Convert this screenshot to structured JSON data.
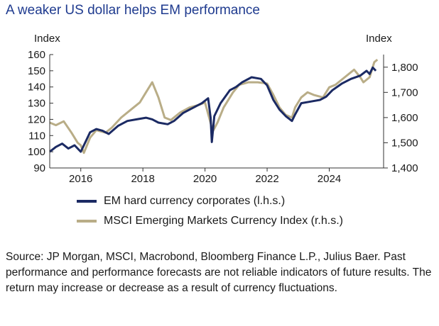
{
  "title": "A weaker US dollar helps EM performance",
  "source": "Source: JP Morgan, MSCI, Macrobond, Bloomberg Finance L.P., Julius Baer. Past performance and performance forecasts are not reliable indicators of future results. The return may increase or decrease as a result of currency fluctuations.",
  "colors": {
    "em_corporates": "#1b2a63",
    "msci_currency": "#b9ad87"
  },
  "chart_data": {
    "type": "line",
    "title": "A weaker US dollar helps EM performance",
    "left_axis": {
      "label": "Index",
      "range": [
        90,
        160
      ],
      "ticks": [
        90,
        100,
        110,
        120,
        130,
        140,
        150,
        160
      ]
    },
    "right_axis": {
      "label": "Index",
      "range": [
        1400,
        1850
      ],
      "ticks": [
        1400,
        1500,
        1600,
        1700,
        1800
      ],
      "tick_labels": [
        "1,400",
        "1,500",
        "1,600",
        "1,700",
        "1,800"
      ]
    },
    "x_axis": {
      "range": [
        2015.0,
        2025.75
      ],
      "ticks": [
        2016,
        2018,
        2020,
        2022,
        2024
      ]
    },
    "legend_position": "bottom",
    "series": [
      {
        "name": "EM hard currency corporates (l.h.s.)",
        "axis": "left",
        "x": [
          2015.0,
          2015.2,
          2015.4,
          2015.6,
          2015.8,
          2016.0,
          2016.1,
          2016.3,
          2016.5,
          2016.7,
          2016.9,
          2017.2,
          2017.5,
          2017.8,
          2018.1,
          2018.3,
          2018.5,
          2018.8,
          2019.0,
          2019.3,
          2019.6,
          2019.9,
          2020.1,
          2020.18,
          2020.22,
          2020.3,
          2020.5,
          2020.8,
          2021.0,
          2021.2,
          2021.5,
          2021.8,
          2022.0,
          2022.2,
          2022.4,
          2022.6,
          2022.8,
          2022.9,
          2023.1,
          2023.4,
          2023.7,
          2023.9,
          2024.1,
          2024.4,
          2024.7,
          2025.0,
          2025.2,
          2025.3,
          2025.4,
          2025.5
        ],
        "y": [
          100,
          103,
          105,
          102,
          104,
          100,
          104,
          112,
          114,
          113,
          111,
          116,
          119,
          120,
          121,
          120,
          118,
          117,
          119,
          124,
          127,
          130,
          133,
          121,
          106,
          122,
          130,
          138,
          140,
          143,
          146,
          145,
          141,
          132,
          126,
          122,
          119,
          123,
          130,
          131,
          132,
          134,
          138,
          142,
          145,
          147,
          150,
          148,
          152,
          150
        ]
      },
      {
        "name": "MSCI Emerging Markets Currency Index (r.h.s.)",
        "axis": "right",
        "x": [
          2015.0,
          2015.2,
          2015.45,
          2015.7,
          2015.9,
          2016.0,
          2016.1,
          2016.3,
          2016.5,
          2016.8,
          2017.0,
          2017.3,
          2017.6,
          2017.9,
          2018.1,
          2018.3,
          2018.5,
          2018.7,
          2018.9,
          2019.2,
          2019.5,
          2019.8,
          2020.0,
          2020.2,
          2020.25,
          2020.4,
          2020.6,
          2020.9,
          2021.1,
          2021.4,
          2021.7,
          2022.0,
          2022.2,
          2022.4,
          2022.6,
          2022.8,
          2022.9,
          2023.1,
          2023.3,
          2023.5,
          2023.8,
          2024.0,
          2024.2,
          2024.5,
          2024.8,
          2025.0,
          2025.1,
          2025.3,
          2025.45,
          2025.55
        ],
        "y": [
          1580,
          1570,
          1585,
          1540,
          1500,
          1490,
          1460,
          1520,
          1550,
          1540,
          1560,
          1600,
          1630,
          1660,
          1700,
          1740,
          1680,
          1600,
          1590,
          1620,
          1640,
          1650,
          1660,
          1570,
          1545,
          1580,
          1640,
          1700,
          1730,
          1740,
          1740,
          1735,
          1690,
          1640,
          1610,
          1600,
          1640,
          1680,
          1700,
          1690,
          1680,
          1720,
          1730,
          1760,
          1790,
          1760,
          1740,
          1760,
          1820,
          1830
        ]
      }
    ]
  },
  "legend": [
    {
      "label": "EM hard currency corporates (l.h.s.)"
    },
    {
      "label": "MSCI Emerging Markets Currency Index (r.h.s.)"
    }
  ]
}
